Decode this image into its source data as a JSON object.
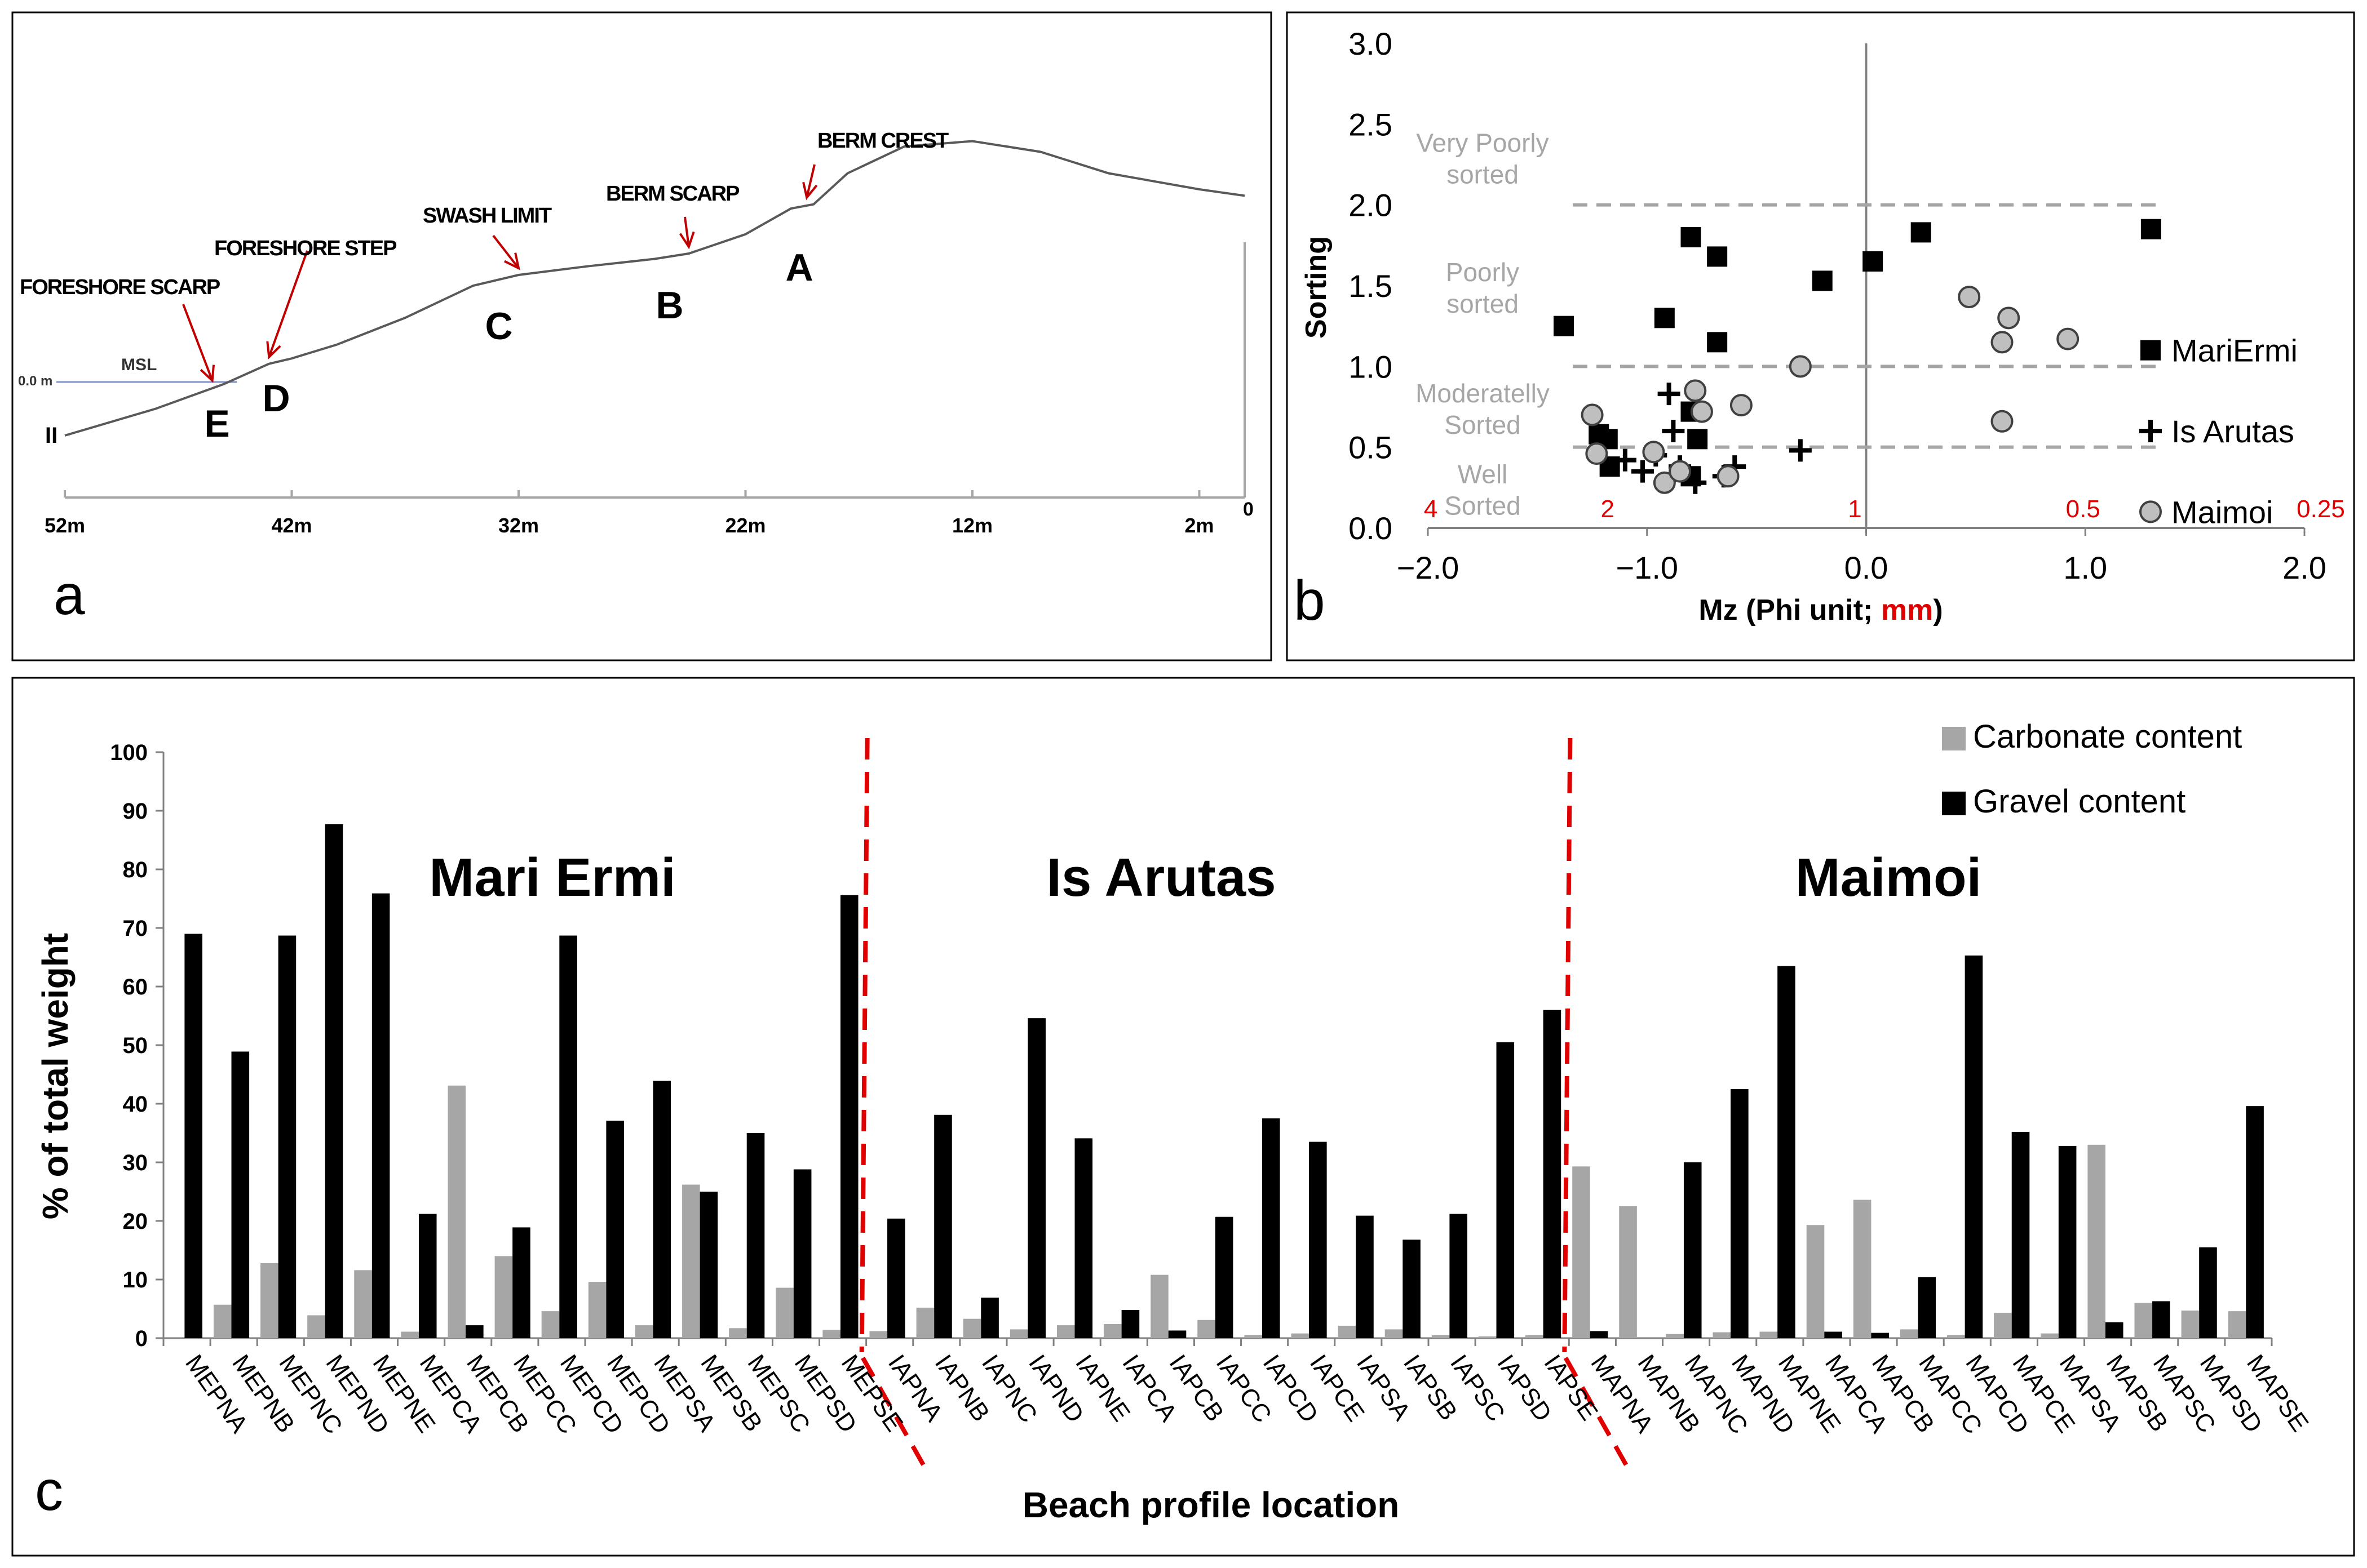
{
  "colors": {
    "red": "#c00000",
    "black": "#000000",
    "gray": "#a6a6a6",
    "dashed": "#a6a6a6",
    "axis": "#808080",
    "maimoi": "#bfbfbf"
  },
  "chart_data": [
    {
      "panel": "a",
      "type": "line",
      "title": "",
      "xlabel": "",
      "ylabel": "",
      "x_ticks": [
        "52m",
        "42m",
        "32m",
        "22m",
        "12m",
        "2m",
        "0"
      ],
      "profile_start_label": "II",
      "msl_label": "MSL",
      "msl_level_label": "0.0 m",
      "xlim": [
        53,
        0
      ],
      "ylim": [
        -0.55,
        3.0
      ],
      "profile": [
        [
          52,
          -0.5
        ],
        [
          48,
          -0.25
        ],
        [
          45,
          -0.02
        ],
        [
          43,
          0.17
        ],
        [
          42,
          0.22
        ],
        [
          40,
          0.35
        ],
        [
          37,
          0.6
        ],
        [
          34,
          0.9
        ],
        [
          32,
          1.0
        ],
        [
          29,
          1.08
        ],
        [
          26,
          1.15
        ],
        [
          24.5,
          1.2
        ],
        [
          22,
          1.38
        ],
        [
          20,
          1.62
        ],
        [
          19,
          1.66
        ],
        [
          17.5,
          1.95
        ],
        [
          15,
          2.2
        ],
        [
          12,
          2.25
        ],
        [
          9,
          2.15
        ],
        [
          6,
          1.95
        ],
        [
          2,
          1.8
        ],
        [
          0,
          1.74
        ]
      ],
      "features": [
        {
          "letter": "A",
          "name": "BERM CREST",
          "x": 19.2,
          "y": 1.66
        },
        {
          "letter": "B",
          "name": "BERM SCARP",
          "x": 24.5,
          "y": 1.2
        },
        {
          "letter": "C",
          "name": "SWASH LIMIT",
          "x": 32,
          "y": 1.0
        },
        {
          "letter": "D",
          "name": "FORESHORE STEP",
          "x": 43,
          "y": 0.17
        },
        {
          "letter": "E",
          "name": "FORESHORE SCARP",
          "x": 45.5,
          "y": -0.05
        }
      ]
    },
    {
      "panel": "b",
      "type": "scatter",
      "xlabel_main": "Mz (Phi unit;",
      "xlabel_mm": "mm",
      "xlabel_end": ")",
      "ylabel": "Sorting",
      "xlim": [
        -2.0,
        2.0
      ],
      "ylim": [
        0.0,
        3.0
      ],
      "x_ticks": [
        "−2.0",
        "−1.0",
        "0.0",
        "1.0",
        "2.0"
      ],
      "y_ticks": [
        "0.0",
        "0.5",
        "1.0",
        "1.5",
        "2.0",
        "2.5",
        "3.0"
      ],
      "mm_ticks": [
        {
          "phi": -2.0,
          "label": "4"
        },
        {
          "phi": -1.0,
          "label": "2"
        },
        {
          "phi": 0.0,
          "label": "1"
        },
        {
          "phi": 1.0,
          "label": "0.5"
        },
        {
          "phi": 2.0,
          "label": "0.25"
        }
      ],
      "thresholds": [
        0.5,
        1.0,
        2.0
      ],
      "classes": [
        {
          "line1": "Very Poorly",
          "line2": "sorted",
          "y": 2.3
        },
        {
          "line1": "Poorly",
          "line2": "sorted",
          "y": 1.5
        },
        {
          "line1": "Moderatelly",
          "line2": "Sorted",
          "y": 0.75
        },
        {
          "line1": "Well",
          "line2": "Sorted",
          "y": 0.25
        }
      ],
      "series": [
        {
          "name": "MariErmi",
          "marker": "square",
          "points": [
            [
              -0.8,
              1.8
            ],
            [
              -0.68,
              1.68
            ],
            [
              -0.2,
              1.53
            ],
            [
              0.03,
              1.65
            ],
            [
              0.25,
              1.83
            ],
            [
              1.3,
              1.85
            ],
            [
              -1.38,
              1.25
            ],
            [
              -0.92,
              1.3
            ],
            [
              -0.68,
              1.15
            ],
            [
              -1.22,
              0.58
            ],
            [
              -1.18,
              0.55
            ],
            [
              -1.17,
              0.38
            ],
            [
              -0.8,
              0.72
            ],
            [
              -0.77,
              0.55
            ],
            [
              -0.8,
              0.32
            ]
          ]
        },
        {
          "name": "Is Arutas",
          "marker": "plus",
          "points": [
            [
              -0.9,
              0.83
            ],
            [
              -0.88,
              0.6
            ],
            [
              -1.1,
              0.42
            ],
            [
              -1.02,
              0.35
            ],
            [
              -0.96,
              0.45
            ],
            [
              -0.85,
              0.38
            ],
            [
              -0.78,
              0.28
            ],
            [
              -0.65,
              0.32
            ],
            [
              -0.6,
              0.38
            ],
            [
              -0.3,
              0.48
            ]
          ]
        },
        {
          "name": "Maimoi",
          "marker": "circle",
          "points": [
            [
              -1.25,
              0.7
            ],
            [
              -1.23,
              0.46
            ],
            [
              -0.97,
              0.47
            ],
            [
              -0.92,
              0.28
            ],
            [
              -0.85,
              0.35
            ],
            [
              -0.78,
              0.85
            ],
            [
              -0.75,
              0.72
            ],
            [
              -0.63,
              0.32
            ],
            [
              -0.57,
              0.76
            ],
            [
              -0.3,
              1.0
            ],
            [
              0.47,
              1.43
            ],
            [
              0.62,
              1.15
            ],
            [
              0.65,
              1.3
            ],
            [
              0.92,
              1.17
            ],
            [
              0.62,
              0.66
            ]
          ]
        }
      ]
    },
    {
      "panel": "c",
      "type": "bar",
      "xlabel": "Beach profile location",
      "ylabel": "% of total weight",
      "ylim": [
        0,
        100
      ],
      "y_ticks": [
        "0",
        "10",
        "20",
        "30",
        "40",
        "50",
        "60",
        "70",
        "80",
        "90",
        "100"
      ],
      "groups": [
        "Mari Ermi",
        "Is Arutas",
        "Maimoi"
      ],
      "categories": [
        "MEPNA",
        "MEPNB",
        "MEPNC",
        "MEPND",
        "MEPNE",
        "MEPCA",
        "MEPCB",
        "MEPCC",
        "MEPCD",
        "MEPCD",
        "MEPSA",
        "MEPSB",
        "MEPSC",
        "MEPSD",
        "MEPSE",
        "IAPNA",
        "IAPNB",
        "IAPNC",
        "IAPND",
        "IAPNE",
        "IAPCA",
        "IAPCB",
        "IAPCC",
        "IAPCD",
        "IAPCE",
        "IAPSA",
        "IAPSB",
        "IAPSC",
        "IAPSD",
        "IAPSE",
        "MAPNA",
        "MAPNB",
        "MAPNC",
        "MAPND",
        "MAPNE",
        "MAPCA",
        "MAPCB",
        "MAPCC",
        "MAPCD",
        "MAPCE",
        "MAPSA",
        "MAPSB",
        "MAPSC",
        "MAPSD",
        "MAPSE"
      ],
      "series": [
        {
          "name": "Carbonate content",
          "values": [
            0,
            5.7,
            12.8,
            3.9,
            11.6,
            1.1,
            43.1,
            14,
            4.6,
            9.6,
            2.2,
            26.2,
            1.7,
            8.6,
            1.4,
            1.2,
            5.2,
            3.3,
            1.5,
            2.2,
            2.4,
            10.8,
            3.1,
            0.5,
            0.8,
            2.1,
            1.5,
            0.5,
            0.3,
            0.5,
            29.3,
            22.5,
            0.7,
            1,
            1.1,
            19.3,
            23.6,
            1.5,
            0.5,
            4.3,
            0.8,
            33,
            6,
            4.7,
            4.6
          ]
        },
        {
          "name": "Gravel content",
          "values": [
            69,
            48.9,
            68.7,
            87.7,
            75.9,
            21.2,
            2.2,
            18.9,
            68.7,
            37.1,
            43.9,
            25,
            35,
            28.8,
            75.6,
            20.4,
            38.1,
            6.9,
            54.6,
            34.1,
            4.8,
            1.3,
            20.7,
            37.5,
            33.5,
            20.9,
            16.8,
            21.2,
            50.5,
            56,
            1.2,
            0,
            30,
            42.5,
            63.5,
            1.1,
            0.9,
            10.4,
            65.3,
            35.2,
            32.8,
            2.7,
            6.3,
            15.5,
            39.6
          ]
        }
      ]
    }
  ],
  "panel_labels": {
    "a": "a",
    "b": "b",
    "c": "c"
  }
}
